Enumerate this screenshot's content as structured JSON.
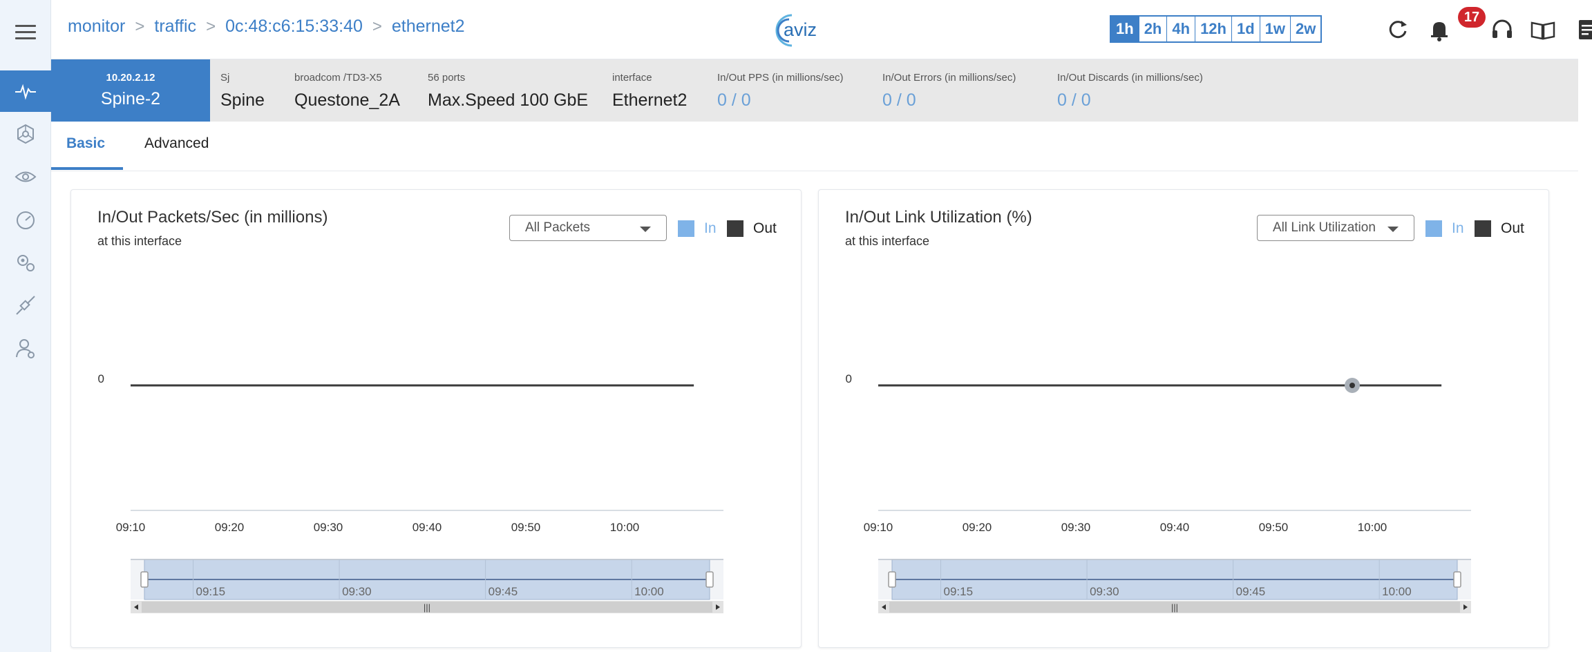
{
  "header": {
    "breadcrumbs": [
      "monitor",
      "traffic",
      "0c:48:c6:15:33:40",
      "ethernet2"
    ],
    "logo_text": "aviz",
    "time_ranges": [
      "1h",
      "2h",
      "4h",
      "12h",
      "1d",
      "1w",
      "2w"
    ],
    "active_time_range": "1h",
    "notification_count": "17"
  },
  "device": {
    "ip": "10.20.2.12",
    "name": "Spine-2",
    "fields": [
      {
        "label": "Sj",
        "value": "Spine"
      },
      {
        "label": "broadcom /TD3-X5",
        "value": "Questone_2A"
      },
      {
        "label": "56 ports",
        "value": "Max.Speed 100 GbE"
      },
      {
        "label": "interface",
        "value": "Ethernet2"
      },
      {
        "label": "In/Out PPS (in millions/sec)",
        "value": "0 / 0"
      },
      {
        "label": "In/Out Errors (in millions/sec)",
        "value": "0 / 0"
      },
      {
        "label": "In/Out Discards (in millions/sec)",
        "value": "0 / 0"
      }
    ]
  },
  "tabs": [
    {
      "label": "Basic",
      "active": true
    },
    {
      "label": "Advanced",
      "active": false
    }
  ],
  "colors": {
    "accent": "#3d7fc7",
    "in_series": "#7fb3e8",
    "out_series": "#3a3a3a",
    "badge": "#d0262c"
  },
  "panels": [
    {
      "title": "In/Out Packets/Sec (in millions)",
      "subtitle": "at this interface",
      "select_value": "All Packets",
      "legend": [
        "In",
        "Out"
      ]
    },
    {
      "title": "In/Out Link Utilization (%)",
      "subtitle": "at this interface",
      "select_value": "All Link Utilization",
      "legend": [
        "In",
        "Out"
      ]
    }
  ],
  "chart_data": [
    {
      "type": "line",
      "title": "In/Out Packets/Sec (in millions)",
      "x_ticks": [
        "09:10",
        "09:20",
        "09:30",
        "09:40",
        "09:50",
        "10:00"
      ],
      "y_ticks": [
        "0"
      ],
      "series": [
        {
          "name": "In",
          "x": [
            "09:10",
            "10:07"
          ],
          "values": [
            0,
            0
          ]
        },
        {
          "name": "Out",
          "x": [
            "09:10",
            "10:07"
          ],
          "values": [
            0,
            0
          ]
        }
      ],
      "navigator_ticks": [
        "09:15",
        "09:30",
        "09:45",
        "10:00"
      ]
    },
    {
      "type": "line",
      "title": "In/Out Link Utilization (%)",
      "x_ticks": [
        "09:10",
        "09:20",
        "09:30",
        "09:40",
        "09:50",
        "10:00"
      ],
      "y_ticks": [
        "0"
      ],
      "series": [
        {
          "name": "In",
          "x": [
            "09:10",
            "10:07"
          ],
          "values": [
            0,
            0
          ]
        },
        {
          "name": "Out",
          "x": [
            "09:10",
            "10:07"
          ],
          "values": [
            0,
            0
          ]
        }
      ],
      "navigator_ticks": [
        "09:15",
        "09:30",
        "09:45",
        "10:00"
      ]
    }
  ]
}
